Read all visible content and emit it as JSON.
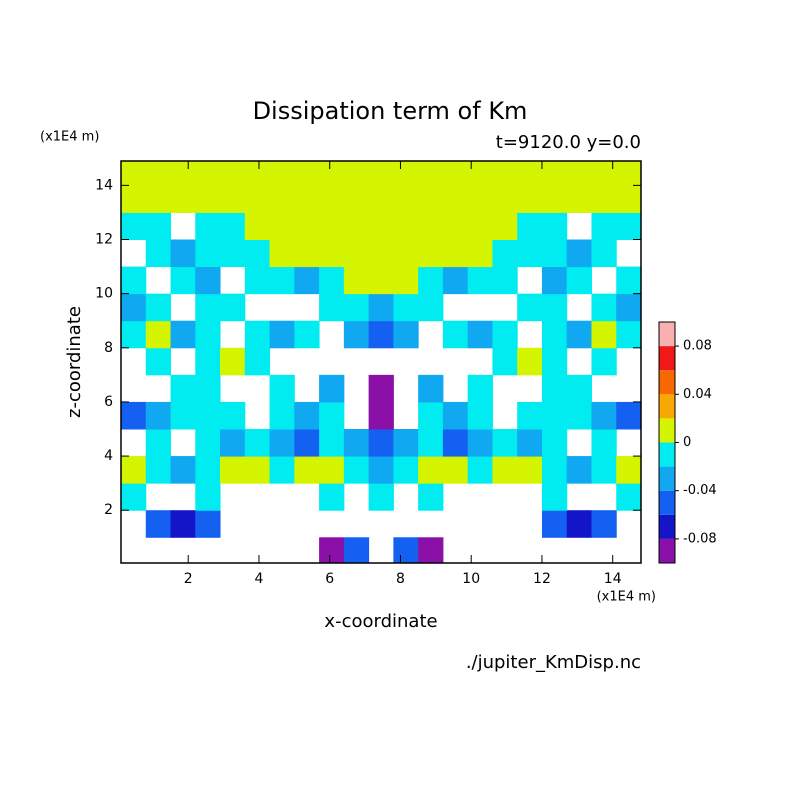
{
  "chart_data": {
    "type": "contour",
    "title": "Dissipation term of Km",
    "subtitle": "t=9120.0 y=0.0",
    "xlabel": "x-coordinate",
    "ylabel": "z-coordinate",
    "xunit": "(x1E4 m)",
    "yunit": "(x1E4 m)",
    "source": "./jupiter_KmDisp.nc",
    "xlim": [
      0.1,
      14.8
    ],
    "ylim": [
      0.05,
      14.9
    ],
    "xticks": [
      2,
      4,
      6,
      8,
      10,
      12,
      14
    ],
    "yticks": [
      2,
      4,
      6,
      8,
      10,
      12,
      14
    ],
    "xbins": [
      0.1,
      0.8,
      1.5,
      2.2,
      2.9,
      3.6,
      4.3,
      5.0,
      5.7,
      6.4,
      7.1,
      7.8,
      8.5,
      9.2,
      9.9,
      10.6,
      11.3,
      12.0,
      12.7,
      13.4,
      14.1,
      14.8
    ],
    "zbins": [
      0.05,
      1,
      2,
      3,
      4,
      5,
      6,
      7,
      8,
      9,
      10,
      11,
      12,
      13,
      14,
      14.9
    ],
    "levels": [
      -0.1,
      -0.08,
      -0.06,
      -0.04,
      -0.02,
      0,
      0.02,
      0.04,
      0.06,
      0.08,
      0.1
    ],
    "colors": [
      "#8a10a8",
      "#1414c8",
      "#1460f0",
      "#10a8f0",
      "#00ecf0",
      "#d4f400",
      "#f8a800",
      "#f86800",
      "#f01818",
      "#f8b0b0"
    ],
    "cbarticks": [
      -0.08,
      -0.04,
      0,
      0.04,
      0.08
    ],
    "z": [
      [
        null,
        null,
        null,
        null,
        null,
        null,
        null,
        null,
        -0.09,
        -0.05,
        null,
        -0.05,
        -0.09,
        null,
        null,
        null,
        null,
        null,
        null,
        null,
        null
      ],
      [
        null,
        -0.05,
        -0.07,
        -0.05,
        null,
        null,
        null,
        null,
        null,
        null,
        null,
        null,
        null,
        null,
        null,
        null,
        null,
        -0.05,
        -0.07,
        -0.05,
        null
      ],
      [
        -0.01,
        null,
        null,
        -0.01,
        null,
        null,
        null,
        null,
        -0.01,
        null,
        -0.01,
        null,
        -0.01,
        null,
        null,
        null,
        null,
        -0.01,
        null,
        null,
        -0.01
      ],
      [
        0.01,
        -0.01,
        -0.03,
        -0.01,
        0.01,
        0.01,
        -0.01,
        0.01,
        0.01,
        -0.01,
        -0.03,
        -0.01,
        0.01,
        0.01,
        -0.01,
        0.01,
        0.01,
        -0.01,
        -0.03,
        -0.01,
        0.01
      ],
      [
        null,
        -0.01,
        null,
        -0.01,
        -0.03,
        -0.01,
        -0.03,
        -0.05,
        -0.01,
        -0.03,
        -0.05,
        -0.03,
        -0.01,
        -0.05,
        -0.03,
        -0.01,
        -0.03,
        -0.01,
        null,
        -0.01,
        null
      ],
      [
        -0.05,
        -0.03,
        -0.01,
        -0.01,
        -0.01,
        null,
        -0.01,
        -0.03,
        -0.01,
        null,
        -0.09,
        null,
        -0.01,
        -0.03,
        -0.01,
        null,
        -0.01,
        -0.01,
        -0.01,
        -0.03,
        -0.05
      ],
      [
        null,
        null,
        -0.01,
        -0.01,
        null,
        null,
        -0.01,
        null,
        -0.03,
        null,
        -0.09,
        null,
        -0.03,
        null,
        -0.01,
        null,
        null,
        -0.01,
        -0.01,
        null,
        null
      ],
      [
        null,
        -0.01,
        null,
        -0.01,
        0.01,
        -0.01,
        null,
        null,
        null,
        null,
        null,
        null,
        null,
        null,
        null,
        -0.01,
        0.01,
        -0.01,
        null,
        -0.01,
        null
      ],
      [
        -0.01,
        0.01,
        -0.03,
        -0.01,
        null,
        -0.01,
        -0.03,
        -0.01,
        null,
        -0.03,
        -0.05,
        -0.03,
        null,
        -0.01,
        -0.03,
        -0.01,
        null,
        -0.01,
        -0.03,
        0.01,
        -0.01
      ],
      [
        -0.03,
        -0.01,
        null,
        -0.01,
        -0.01,
        null,
        null,
        null,
        -0.01,
        -0.01,
        -0.03,
        -0.01,
        -0.01,
        null,
        null,
        null,
        -0.01,
        -0.01,
        null,
        -0.01,
        -0.03
      ],
      [
        -0.01,
        null,
        -0.01,
        -0.03,
        null,
        -0.01,
        -0.01,
        -0.03,
        -0.01,
        0.01,
        0.01,
        0.01,
        -0.01,
        -0.03,
        -0.01,
        -0.01,
        null,
        -0.03,
        -0.01,
        null,
        -0.01
      ],
      [
        null,
        -0.01,
        -0.03,
        -0.01,
        -0.01,
        -0.01,
        0.01,
        0.01,
        0.01,
        0.01,
        0.01,
        0.01,
        0.01,
        0.01,
        0.01,
        -0.01,
        -0.01,
        -0.01,
        -0.03,
        -0.01,
        null
      ],
      [
        -0.01,
        -0.01,
        null,
        -0.01,
        -0.01,
        0.01,
        0.01,
        0.01,
        0.01,
        0.01,
        0.01,
        0.01,
        0.01,
        0.01,
        0.01,
        0.01,
        -0.01,
        -0.01,
        null,
        -0.01,
        -0.01
      ],
      [
        0.01,
        0.01,
        0.01,
        0.01,
        0.01,
        0.01,
        0.01,
        0.01,
        0.01,
        0.01,
        0.01,
        0.01,
        0.01,
        0.01,
        0.01,
        0.01,
        0.01,
        0.01,
        0.01,
        0.01,
        0.01
      ],
      [
        0.01,
        0.01,
        0.01,
        0.01,
        0.01,
        0.01,
        0.01,
        0.01,
        0.01,
        0.01,
        0.01,
        0.01,
        0.01,
        0.01,
        0.01,
        0.01,
        0.01,
        0.01,
        0.01,
        0.01,
        0.01
      ]
    ]
  }
}
